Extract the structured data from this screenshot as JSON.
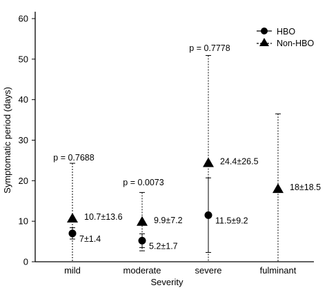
{
  "chart_data": {
    "type": "scatter",
    "title": "",
    "xlabel": "Severity",
    "ylabel": "Symptomatic period (days)",
    "ylim": [
      0,
      60
    ],
    "yticks": [
      0,
      10,
      20,
      30,
      40,
      50,
      60
    ],
    "categories": [
      "mild",
      "moderate",
      "severe",
      "fulminant"
    ],
    "legend_position": "top-right",
    "colors": {
      "marker": "#000000",
      "axis": "#000000",
      "errorbar": "#000000"
    },
    "series": [
      {
        "name": "HBO",
        "marker": "circle",
        "line_style": "solid",
        "points": [
          {
            "category": "mild",
            "mean": 7,
            "sd": 1.4,
            "label": "7±1.4"
          },
          {
            "category": "moderate",
            "mean": 5.2,
            "sd": 1.7,
            "label": "5.2±1.7"
          },
          {
            "category": "severe",
            "mean": 11.5,
            "sd": 9.2,
            "label": "11.5±9.2"
          }
        ]
      },
      {
        "name": "Non-HBO",
        "marker": "triangle",
        "line_style": "dashed",
        "points": [
          {
            "category": "mild",
            "mean": 10.7,
            "sd": 13.6,
            "label": "10.7±13.6"
          },
          {
            "category": "moderate",
            "mean": 9.9,
            "sd": 7.2,
            "label": "9.9±7.2"
          },
          {
            "category": "severe",
            "mean": 24.4,
            "sd": 26.5,
            "label": "24.4±26.5"
          },
          {
            "category": "fulminant",
            "mean": 18,
            "sd": 18.5,
            "label": "18±18.5"
          }
        ]
      }
    ],
    "annotations": [
      {
        "category": "mild",
        "text": "p = 0.7688"
      },
      {
        "category": "moderate",
        "text": "p = 0.0073"
      },
      {
        "category": "severe",
        "text": "p = 0.7778"
      }
    ]
  }
}
